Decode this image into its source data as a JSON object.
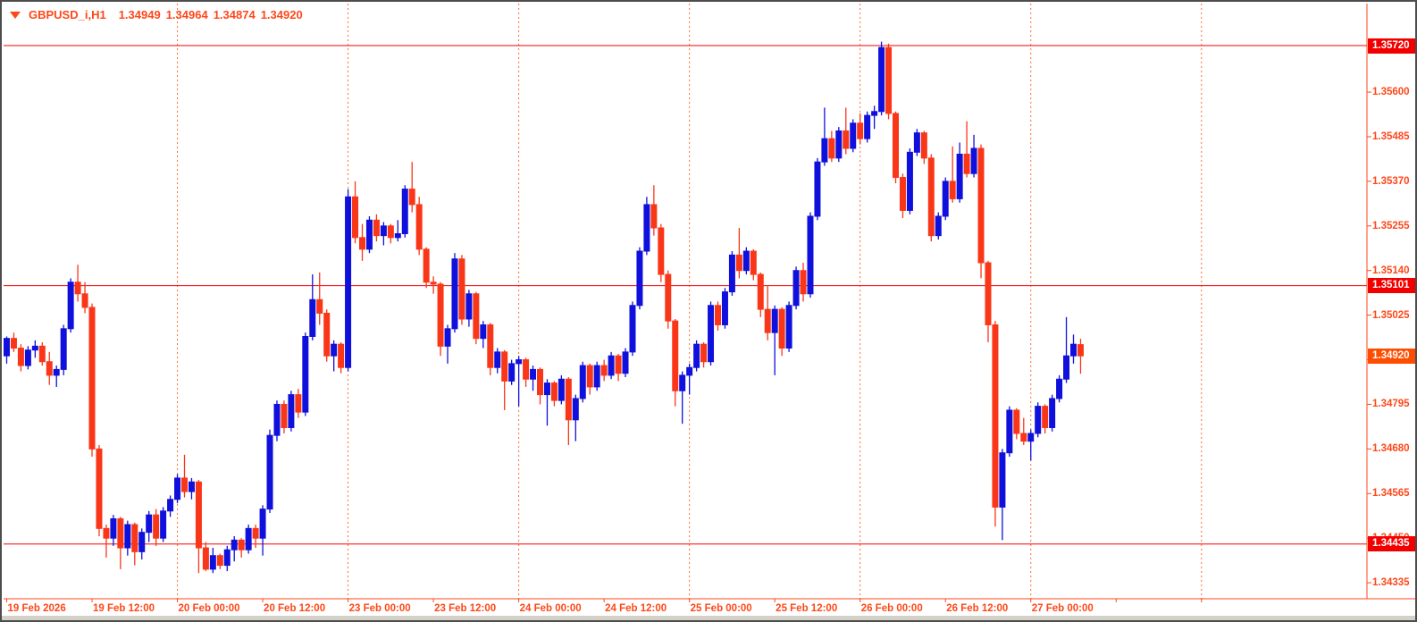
{
  "window": {
    "kind": "terminal-chart"
  },
  "title": {
    "symbol_period": "GBPUSD_i,H1",
    "open": "1.34949",
    "high": "1.34964",
    "low": "1.34874",
    "close": "1.34920"
  },
  "colors": {
    "background": "#ffffff",
    "axis_text": "#ff4719",
    "grid_line": "#ff6d2e",
    "level_line": "#f40000",
    "bull_candle": "#1010dd",
    "bear_candle": "#fa3618",
    "level_badge_bg": "#f20000",
    "current_badge_bg": "#ff4d00",
    "badge_text": "#ffffff",
    "frame_border": "#4d4d4d",
    "bottom_strip": "#d4d1c8"
  },
  "levels": [
    {
      "price": 1.3572,
      "label": "1.35720"
    },
    {
      "price": 1.35101,
      "label": "1.35101"
    },
    {
      "price": 1.34435,
      "label": "1.34435"
    }
  ],
  "current_price": {
    "price": 1.3492,
    "label": "1.34920"
  },
  "y_axis": {
    "ticks": [
      {
        "price": 1.356,
        "label": "1.35600"
      },
      {
        "price": 1.35485,
        "label": "1.35485"
      },
      {
        "price": 1.3537,
        "label": "1.35370"
      },
      {
        "price": 1.35255,
        "label": "1.35255"
      },
      {
        "price": 1.3514,
        "label": "1.35140"
      },
      {
        "price": 1.35025,
        "label": "1.35025"
      },
      {
        "price": 1.3491,
        "label": "1.34910"
      },
      {
        "price": 1.34795,
        "label": "1.34795"
      },
      {
        "price": 1.3468,
        "label": "1.34680"
      },
      {
        "price": 1.34565,
        "label": "1.34565"
      },
      {
        "price": 1.3445,
        "label": "1.34450"
      },
      {
        "price": 1.34335,
        "label": "1.34335"
      }
    ]
  },
  "x_axis": {
    "labels": [
      {
        "text": "19 Feb 2026",
        "bar": 0
      },
      {
        "text": "19 Feb 12:00",
        "bar": 12
      },
      {
        "text": "20 Feb 00:00",
        "bar": 24
      },
      {
        "text": "20 Feb 12:00",
        "bar": 36
      },
      {
        "text": "23 Feb 00:00",
        "bar": 48
      },
      {
        "text": "23 Feb 12:00",
        "bar": 60
      },
      {
        "text": "24 Feb 00:00",
        "bar": 72
      },
      {
        "text": "24 Feb 12:00",
        "bar": 84
      },
      {
        "text": "25 Feb 00:00",
        "bar": 96
      },
      {
        "text": "25 Feb 12:00",
        "bar": 108
      },
      {
        "text": "26 Feb 00:00",
        "bar": 120
      },
      {
        "text": "26 Feb 12:00",
        "bar": 132
      },
      {
        "text": "27 Feb 00:00",
        "bar": 144
      }
    ],
    "unlabeled_tick_bars": [
      156,
      168
    ]
  },
  "chart_data": {
    "type": "candlestick",
    "symbol": "GBPUSD_i",
    "timeframe": "H1",
    "ylim": [
      1.3427,
      1.3583
    ],
    "grid": "vertical-dashed-at-day-boundaries",
    "grid_x_bars": [
      24,
      48,
      72,
      96,
      120,
      144,
      168
    ],
    "candles_ohlc": [
      [
        1.3492,
        1.3497,
        1.349,
        1.34965
      ],
      [
        1.34965,
        1.3498,
        1.3493,
        1.3494
      ],
      [
        1.3494,
        1.3495,
        1.3488,
        1.34895
      ],
      [
        1.34895,
        1.34945,
        1.34885,
        1.34935
      ],
      [
        1.34935,
        1.3496,
        1.34915,
        1.34945
      ],
      [
        1.34945,
        1.34955,
        1.34895,
        1.34905
      ],
      [
        1.34905,
        1.3493,
        1.34845,
        1.3487
      ],
      [
        1.3487,
        1.34895,
        1.3484,
        1.34885
      ],
      [
        1.34885,
        1.35,
        1.3487,
        1.3499
      ],
      [
        1.3499,
        1.3512,
        1.3498,
        1.3511
      ],
      [
        1.3511,
        1.35155,
        1.3506,
        1.3508
      ],
      [
        1.3508,
        1.3511,
        1.3503,
        1.35045
      ],
      [
        1.35045,
        1.35055,
        1.3466,
        1.3468
      ],
      [
        1.3468,
        1.3469,
        1.34455,
        1.34475
      ],
      [
        1.34475,
        1.34485,
        1.344,
        1.3445
      ],
      [
        1.3445,
        1.3451,
        1.3443,
        1.345
      ],
      [
        1.345,
        1.34505,
        1.3437,
        1.34425
      ],
      [
        1.34425,
        1.34495,
        1.34405,
        1.34485
      ],
      [
        1.34485,
        1.3449,
        1.3438,
        1.34415
      ],
      [
        1.34415,
        1.34475,
        1.34395,
        1.34465
      ],
      [
        1.34465,
        1.3452,
        1.3444,
        1.3451
      ],
      [
        1.3451,
        1.34525,
        1.3443,
        1.3445
      ],
      [
        1.3445,
        1.3453,
        1.3444,
        1.3452
      ],
      [
        1.3452,
        1.3456,
        1.34505,
        1.3455
      ],
      [
        1.3455,
        1.34615,
        1.3454,
        1.34605
      ],
      [
        1.34605,
        1.34665,
        1.34555,
        1.3457
      ],
      [
        1.3457,
        1.34605,
        1.3455,
        1.34595
      ],
      [
        1.34595,
        1.346,
        1.3436,
        1.34425
      ],
      [
        1.34425,
        1.3444,
        1.34365,
        1.3437
      ],
      [
        1.3437,
        1.34425,
        1.3436,
        1.34405
      ],
      [
        1.34405,
        1.3441,
        1.3437,
        1.3438
      ],
      [
        1.3438,
        1.3443,
        1.34365,
        1.3442
      ],
      [
        1.3442,
        1.34455,
        1.3439,
        1.34445
      ],
      [
        1.34445,
        1.3445,
        1.344,
        1.3442
      ],
      [
        1.3442,
        1.34485,
        1.3441,
        1.34475
      ],
      [
        1.34475,
        1.34485,
        1.34425,
        1.3445
      ],
      [
        1.3445,
        1.34535,
        1.34405,
        1.34525
      ],
      [
        1.34525,
        1.3473,
        1.34515,
        1.34715
      ],
      [
        1.34715,
        1.34805,
        1.347,
        1.34795
      ],
      [
        1.34795,
        1.34805,
        1.3472,
        1.34735
      ],
      [
        1.34735,
        1.3483,
        1.34725,
        1.3482
      ],
      [
        1.3482,
        1.34835,
        1.3476,
        1.34775
      ],
      [
        1.34775,
        1.3498,
        1.34765,
        1.3497
      ],
      [
        1.3497,
        1.3513,
        1.3496,
        1.35065
      ],
      [
        1.35065,
        1.35135,
        1.35,
        1.3503
      ],
      [
        1.3503,
        1.3504,
        1.34905,
        1.3492
      ],
      [
        1.3492,
        1.3496,
        1.3488,
        1.3495
      ],
      [
        1.3495,
        1.34955,
        1.34875,
        1.3489
      ],
      [
        1.3489,
        1.3535,
        1.3488,
        1.3533
      ],
      [
        1.3533,
        1.3537,
        1.3521,
        1.35225
      ],
      [
        1.35225,
        1.3526,
        1.35165,
        1.35195
      ],
      [
        1.35195,
        1.3528,
        1.35185,
        1.3527
      ],
      [
        1.3527,
        1.35285,
        1.35215,
        1.3523
      ],
      [
        1.3523,
        1.35265,
        1.35205,
        1.35255
      ],
      [
        1.35255,
        1.3526,
        1.3521,
        1.35225
      ],
      [
        1.35225,
        1.3527,
        1.35215,
        1.35235
      ],
      [
        1.35235,
        1.3536,
        1.35225,
        1.3535
      ],
      [
        1.3535,
        1.3542,
        1.3529,
        1.3531
      ],
      [
        1.3531,
        1.3533,
        1.3518,
        1.35195
      ],
      [
        1.35195,
        1.352,
        1.35095,
        1.3511
      ],
      [
        1.3511,
        1.35125,
        1.3508,
        1.35105
      ],
      [
        1.35105,
        1.3511,
        1.3492,
        1.34945
      ],
      [
        1.34945,
        1.35,
        1.349,
        1.3499
      ],
      [
        1.3499,
        1.35185,
        1.3498,
        1.3517
      ],
      [
        1.3517,
        1.3518,
        1.35,
        1.35015
      ],
      [
        1.35015,
        1.3509,
        1.34995,
        1.3508
      ],
      [
        1.3508,
        1.35085,
        1.3495,
        1.34965
      ],
      [
        1.34965,
        1.3501,
        1.3494,
        1.35
      ],
      [
        1.35,
        1.35005,
        1.3487,
        1.3489
      ],
      [
        1.3489,
        1.3494,
        1.34875,
        1.3493
      ],
      [
        1.3493,
        1.34935,
        1.3478,
        1.34855
      ],
      [
        1.34855,
        1.3491,
        1.34845,
        1.349
      ],
      [
        1.349,
        1.3492,
        1.3479,
        1.3491
      ],
      [
        1.3491,
        1.34915,
        1.3484,
        1.3486
      ],
      [
        1.3486,
        1.34895,
        1.3483,
        1.34885
      ],
      [
        1.34885,
        1.3489,
        1.34795,
        1.3482
      ],
      [
        1.3482,
        1.3486,
        1.3474,
        1.3485
      ],
      [
        1.3485,
        1.34855,
        1.3479,
        1.34805
      ],
      [
        1.34805,
        1.3487,
        1.34795,
        1.3486
      ],
      [
        1.3486,
        1.34865,
        1.3469,
        1.34755
      ],
      [
        1.34755,
        1.3482,
        1.347,
        1.3481
      ],
      [
        1.3481,
        1.34905,
        1.348,
        1.34895
      ],
      [
        1.34895,
        1.349,
        1.3482,
        1.3484
      ],
      [
        1.3484,
        1.34905,
        1.3483,
        1.34895
      ],
      [
        1.34895,
        1.3491,
        1.34855,
        1.3487
      ],
      [
        1.3487,
        1.3493,
        1.3486,
        1.3492
      ],
      [
        1.3492,
        1.34925,
        1.34855,
        1.34875
      ],
      [
        1.34875,
        1.3494,
        1.34865,
        1.3493
      ],
      [
        1.3493,
        1.3506,
        1.3492,
        1.3505
      ],
      [
        1.3505,
        1.352,
        1.3504,
        1.3519
      ],
      [
        1.3519,
        1.3533,
        1.3518,
        1.3531
      ],
      [
        1.3531,
        1.3536,
        1.3523,
        1.3525
      ],
      [
        1.3525,
        1.3526,
        1.3511,
        1.3513
      ],
      [
        1.3513,
        1.3514,
        1.3499,
        1.3501
      ],
      [
        1.3501,
        1.35015,
        1.3479,
        1.3483
      ],
      [
        1.3483,
        1.3488,
        1.34745,
        1.3487
      ],
      [
        1.3487,
        1.349,
        1.3482,
        1.3489
      ],
      [
        1.3489,
        1.3496,
        1.3488,
        1.3495
      ],
      [
        1.3495,
        1.34955,
        1.3489,
        1.34905
      ],
      [
        1.34905,
        1.3506,
        1.34895,
        1.3505
      ],
      [
        1.3505,
        1.3506,
        1.34985,
        1.35
      ],
      [
        1.35,
        1.35095,
        1.3499,
        1.35085
      ],
      [
        1.35085,
        1.3519,
        1.35075,
        1.3518
      ],
      [
        1.3518,
        1.3525,
        1.3512,
        1.3514
      ],
      [
        1.3514,
        1.352,
        1.3513,
        1.3519
      ],
      [
        1.3519,
        1.35195,
        1.35115,
        1.3513
      ],
      [
        1.3513,
        1.35135,
        1.3502,
        1.3504
      ],
      [
        1.3504,
        1.351,
        1.3496,
        1.3498
      ],
      [
        1.3498,
        1.3505,
        1.3487,
        1.3504
      ],
      [
        1.3504,
        1.35045,
        1.3492,
        1.3494
      ],
      [
        1.3494,
        1.3506,
        1.3493,
        1.3505
      ],
      [
        1.3505,
        1.3515,
        1.3504,
        1.3514
      ],
      [
        1.3514,
        1.3516,
        1.3506,
        1.3508
      ],
      [
        1.3508,
        1.3529,
        1.3507,
        1.3528
      ],
      [
        1.3528,
        1.3543,
        1.3527,
        1.3542
      ],
      [
        1.3542,
        1.3556,
        1.3541,
        1.3548
      ],
      [
        1.3548,
        1.355,
        1.3542,
        1.3543
      ],
      [
        1.3543,
        1.3551,
        1.3542,
        1.355
      ],
      [
        1.355,
        1.3556,
        1.3544,
        1.35455
      ],
      [
        1.35455,
        1.3553,
        1.35445,
        1.3552
      ],
      [
        1.3552,
        1.35545,
        1.35465,
        1.3548
      ],
      [
        1.3548,
        1.3555,
        1.3547,
        1.3554
      ],
      [
        1.3554,
        1.35565,
        1.35505,
        1.3555
      ],
      [
        1.3555,
        1.3573,
        1.3554,
        1.35715
      ],
      [
        1.35715,
        1.35725,
        1.3553,
        1.35545
      ],
      [
        1.35545,
        1.3555,
        1.35365,
        1.3538
      ],
      [
        1.3538,
        1.3539,
        1.35275,
        1.35295
      ],
      [
        1.35295,
        1.35455,
        1.35285,
        1.35445
      ],
      [
        1.35445,
        1.35505,
        1.35435,
        1.35495
      ],
      [
        1.35495,
        1.355,
        1.35415,
        1.3543
      ],
      [
        1.3543,
        1.3544,
        1.35215,
        1.3523
      ],
      [
        1.3523,
        1.3529,
        1.3522,
        1.3528
      ],
      [
        1.3528,
        1.3538,
        1.3527,
        1.3537
      ],
      [
        1.3537,
        1.3546,
        1.35315,
        1.35325
      ],
      [
        1.35325,
        1.3547,
        1.35315,
        1.3544
      ],
      [
        1.3544,
        1.35525,
        1.3538,
        1.3539
      ],
      [
        1.3539,
        1.3549,
        1.3538,
        1.35455
      ],
      [
        1.35455,
        1.35465,
        1.3512,
        1.3516
      ],
      [
        1.3516,
        1.35165,
        1.34955,
        1.35
      ],
      [
        1.35,
        1.3501,
        1.3448,
        1.3453
      ],
      [
        1.3453,
        1.3468,
        1.34445,
        1.3467
      ],
      [
        1.3467,
        1.3479,
        1.3466,
        1.3478
      ],
      [
        1.3478,
        1.34785,
        1.34705,
        1.3472
      ],
      [
        1.3472,
        1.3476,
        1.3469,
        1.347
      ],
      [
        1.347,
        1.3473,
        1.3465,
        1.3472
      ],
      [
        1.3472,
        1.348,
        1.3471,
        1.3479
      ],
      [
        1.3479,
        1.34795,
        1.3472,
        1.34735
      ],
      [
        1.34735,
        1.3482,
        1.34725,
        1.3481
      ],
      [
        1.3481,
        1.3487,
        1.348,
        1.3486
      ],
      [
        1.3486,
        1.3502,
        1.3485,
        1.3492
      ],
      [
        1.3492,
        1.34975,
        1.349,
        1.3495
      ],
      [
        1.34949,
        1.34964,
        1.34874,
        1.3492
      ]
    ]
  }
}
